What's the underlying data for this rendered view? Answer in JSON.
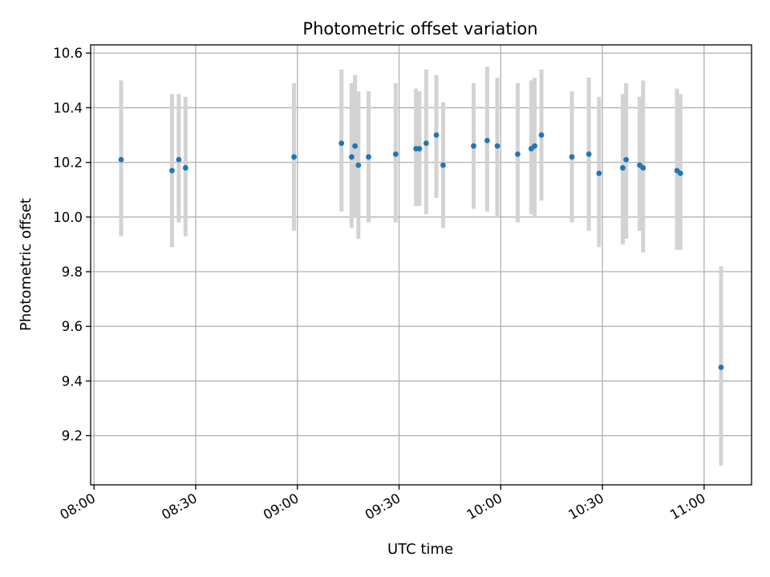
{
  "chart_data": {
    "type": "scatter",
    "title": "Photometric offset variation",
    "xlabel": "UTC time",
    "ylabel": "Photometric offset",
    "xlim": [
      "07:59",
      "11:14"
    ],
    "ylim": [
      9.02,
      10.63
    ],
    "x_ticks": [
      "08:00",
      "08:30",
      "09:00",
      "09:30",
      "10:00",
      "10:30",
      "11:00"
    ],
    "y_ticks": [
      9.2,
      9.4,
      9.6,
      9.8,
      10.0,
      10.2,
      10.4,
      10.6
    ],
    "y_tick_labels": [
      "9.2",
      "9.4",
      "9.6",
      "9.8",
      "10.0",
      "10.2",
      "10.4",
      "10.6"
    ],
    "grid": true,
    "point_color": "#1f77b4",
    "errorbar_color": "#d3d3d3",
    "points": [
      {
        "x": "08:08",
        "y": 10.21,
        "ylow": 9.93,
        "yhigh": 10.5
      },
      {
        "x": "08:23",
        "y": 10.17,
        "ylow": 9.89,
        "yhigh": 10.45
      },
      {
        "x": "08:25",
        "y": 10.21,
        "ylow": 9.98,
        "yhigh": 10.45
      },
      {
        "x": "08:27",
        "y": 10.18,
        "ylow": 9.93,
        "yhigh": 10.44
      },
      {
        "x": "08:59",
        "y": 10.22,
        "ylow": 9.95,
        "yhigh": 10.49
      },
      {
        "x": "09:13",
        "y": 10.27,
        "ylow": 10.02,
        "yhigh": 10.54
      },
      {
        "x": "09:16",
        "y": 10.22,
        "ylow": 9.96,
        "yhigh": 10.49
      },
      {
        "x": "09:17",
        "y": 10.26,
        "ylow": 10.0,
        "yhigh": 10.52
      },
      {
        "x": "09:18",
        "y": 10.19,
        "ylow": 9.92,
        "yhigh": 10.46
      },
      {
        "x": "09:21",
        "y": 10.22,
        "ylow": 9.98,
        "yhigh": 10.46
      },
      {
        "x": "09:29",
        "y": 10.23,
        "ylow": 9.98,
        "yhigh": 10.49
      },
      {
        "x": "09:35",
        "y": 10.25,
        "ylow": 10.04,
        "yhigh": 10.47
      },
      {
        "x": "09:36",
        "y": 10.25,
        "ylow": 10.04,
        "yhigh": 10.46
      },
      {
        "x": "09:38",
        "y": 10.27,
        "ylow": 10.01,
        "yhigh": 10.54
      },
      {
        "x": "09:41",
        "y": 10.3,
        "ylow": 10.07,
        "yhigh": 10.52
      },
      {
        "x": "09:43",
        "y": 10.19,
        "ylow": 9.96,
        "yhigh": 10.42
      },
      {
        "x": "09:52",
        "y": 10.26,
        "ylow": 10.03,
        "yhigh": 10.49
      },
      {
        "x": "09:56",
        "y": 10.28,
        "ylow": 10.02,
        "yhigh": 10.55
      },
      {
        "x": "09:59",
        "y": 10.26,
        "ylow": 10.0,
        "yhigh": 10.51
      },
      {
        "x": "10:05",
        "y": 10.23,
        "ylow": 9.98,
        "yhigh": 10.49
      },
      {
        "x": "10:09",
        "y": 10.25,
        "ylow": 10.01,
        "yhigh": 10.5
      },
      {
        "x": "10:10",
        "y": 10.26,
        "ylow": 10.0,
        "yhigh": 10.51
      },
      {
        "x": "10:12",
        "y": 10.3,
        "ylow": 10.06,
        "yhigh": 10.54
      },
      {
        "x": "10:21",
        "y": 10.22,
        "ylow": 9.98,
        "yhigh": 10.46
      },
      {
        "x": "10:26",
        "y": 10.23,
        "ylow": 9.95,
        "yhigh": 10.51
      },
      {
        "x": "10:29",
        "y": 10.16,
        "ylow": 9.89,
        "yhigh": 10.44
      },
      {
        "x": "10:36",
        "y": 10.18,
        "ylow": 9.9,
        "yhigh": 10.45
      },
      {
        "x": "10:37",
        "y": 10.21,
        "ylow": 9.92,
        "yhigh": 10.49
      },
      {
        "x": "10:41",
        "y": 10.19,
        "ylow": 9.95,
        "yhigh": 10.44
      },
      {
        "x": "10:42",
        "y": 10.18,
        "ylow": 9.87,
        "yhigh": 10.5
      },
      {
        "x": "10:52",
        "y": 10.17,
        "ylow": 9.88,
        "yhigh": 10.47
      },
      {
        "x": "10:53",
        "y": 10.16,
        "ylow": 9.88,
        "yhigh": 10.45
      },
      {
        "x": "11:05",
        "y": 9.45,
        "ylow": 9.09,
        "yhigh": 9.82
      }
    ]
  }
}
